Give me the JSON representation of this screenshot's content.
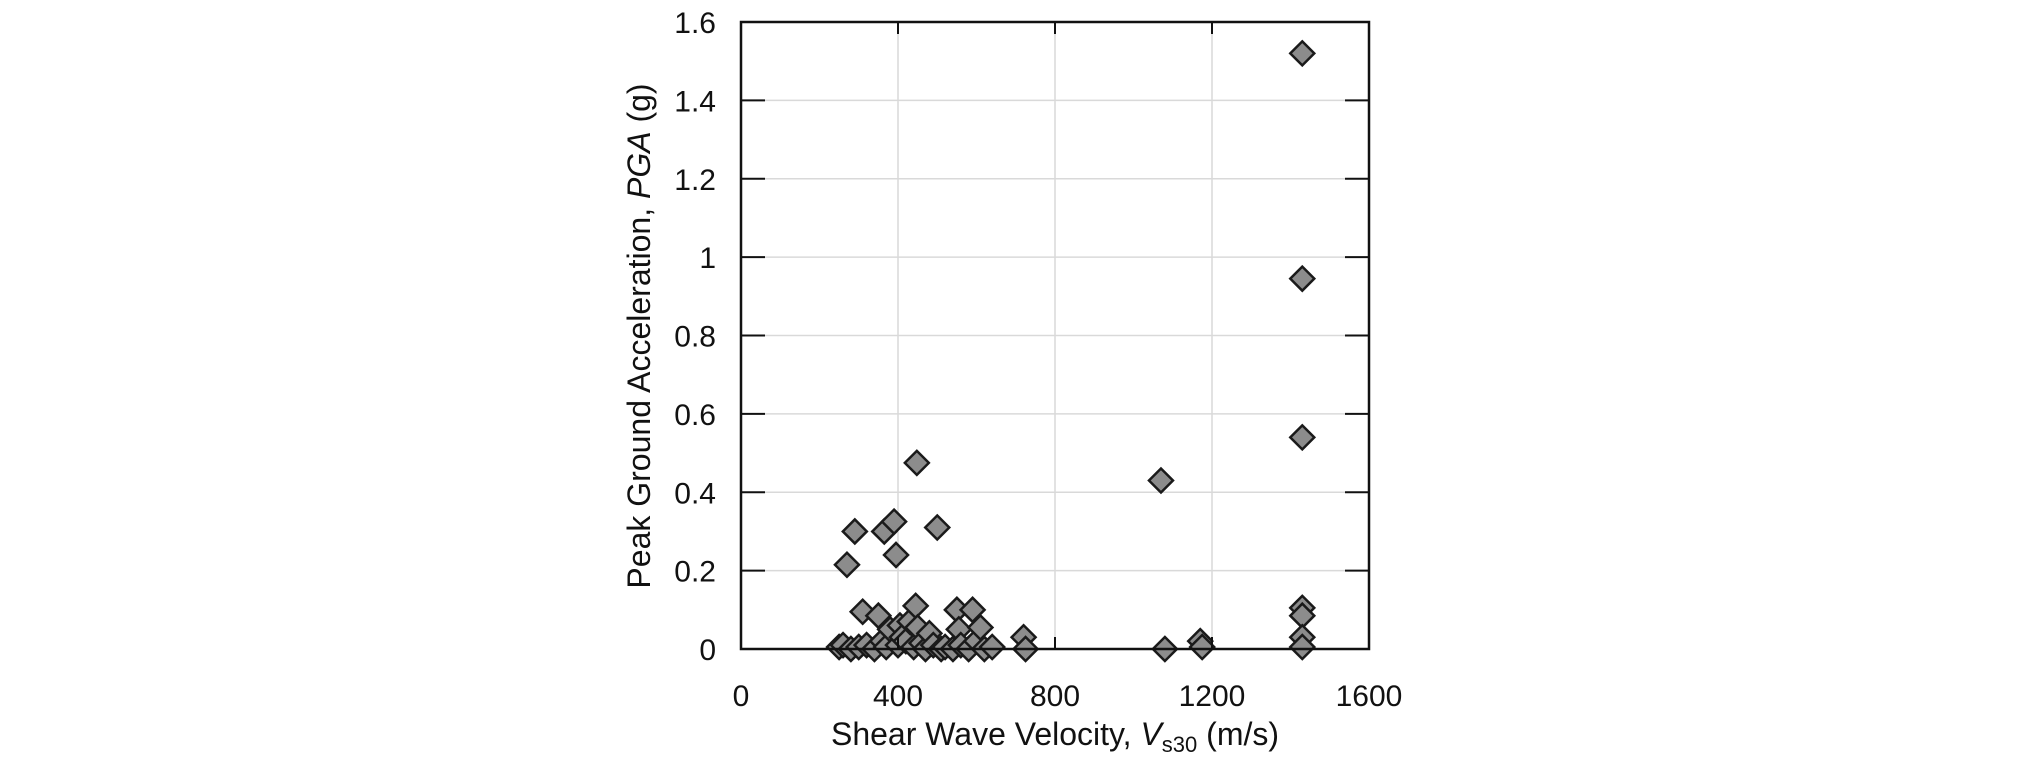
{
  "chart_data": {
    "type": "scatter",
    "xlabel_parts": {
      "prefix": "Shear Wave Velocity, ",
      "symbol": "V",
      "subscript": "s30",
      "suffix": " (m/s)"
    },
    "ylabel_parts": {
      "prefix": "Peak Ground Acceleration, ",
      "symbol": "PGA",
      "suffix": " (g)"
    },
    "xlim": [
      0,
      1600
    ],
    "ylim": [
      0,
      1.6
    ],
    "xticks": [
      0,
      400,
      800,
      1200,
      1600
    ],
    "xtick_labels": [
      "0",
      "400",
      "800",
      "1200",
      "1600"
    ],
    "yticks": [
      0,
      0.2,
      0.4,
      0.6,
      0.8,
      1.0,
      1.2,
      1.4,
      1.6
    ],
    "ytick_labels": [
      "0",
      "0.2",
      "0.4",
      "0.6",
      "0.8",
      "1",
      "1.2",
      "1.4",
      "1.6"
    ],
    "grid": true,
    "marker": "diamond",
    "colors": {
      "marker_fill": "#8c8c8c",
      "marker_stroke": "#1a1a1a",
      "grid": "#d9d9d9",
      "axis": "#111111"
    },
    "points": [
      {
        "x": 250,
        "y": 0.005
      },
      {
        "x": 260,
        "y": 0.01
      },
      {
        "x": 270,
        "y": 0.215
      },
      {
        "x": 290,
        "y": 0.3
      },
      {
        "x": 280,
        "y": 0.0
      },
      {
        "x": 300,
        "y": 0.005
      },
      {
        "x": 310,
        "y": 0.095
      },
      {
        "x": 320,
        "y": 0.01
      },
      {
        "x": 340,
        "y": 0.0
      },
      {
        "x": 350,
        "y": 0.085
      },
      {
        "x": 360,
        "y": 0.02
      },
      {
        "x": 365,
        "y": 0.3
      },
      {
        "x": 370,
        "y": 0.005
      },
      {
        "x": 380,
        "y": 0.05
      },
      {
        "x": 390,
        "y": 0.325
      },
      {
        "x": 395,
        "y": 0.24
      },
      {
        "x": 400,
        "y": 0.01
      },
      {
        "x": 405,
        "y": 0.06
      },
      {
        "x": 410,
        "y": 0.03
      },
      {
        "x": 420,
        "y": 0.02
      },
      {
        "x": 430,
        "y": 0.07
      },
      {
        "x": 440,
        "y": 0.005
      },
      {
        "x": 445,
        "y": 0.11
      },
      {
        "x": 448,
        "y": 0.475
      },
      {
        "x": 450,
        "y": 0.055
      },
      {
        "x": 460,
        "y": 0.015
      },
      {
        "x": 470,
        "y": 0.0
      },
      {
        "x": 480,
        "y": 0.04
      },
      {
        "x": 490,
        "y": 0.01
      },
      {
        "x": 500,
        "y": 0.31
      },
      {
        "x": 510,
        "y": 0.0
      },
      {
        "x": 520,
        "y": 0.005
      },
      {
        "x": 540,
        "y": 0.0
      },
      {
        "x": 550,
        "y": 0.1
      },
      {
        "x": 555,
        "y": 0.05
      },
      {
        "x": 560,
        "y": 0.01
      },
      {
        "x": 580,
        "y": 0.0
      },
      {
        "x": 590,
        "y": 0.1
      },
      {
        "x": 600,
        "y": 0.02
      },
      {
        "x": 610,
        "y": 0.055
      },
      {
        "x": 620,
        "y": 0.0
      },
      {
        "x": 640,
        "y": 0.005
      },
      {
        "x": 720,
        "y": 0.03
      },
      {
        "x": 725,
        "y": 0.0
      },
      {
        "x": 1070,
        "y": 0.43
      },
      {
        "x": 1080,
        "y": 0.0
      },
      {
        "x": 1170,
        "y": 0.02
      },
      {
        "x": 1175,
        "y": 0.005
      },
      {
        "x": 1430,
        "y": 1.52
      },
      {
        "x": 1430,
        "y": 0.945
      },
      {
        "x": 1430,
        "y": 0.54
      },
      {
        "x": 1430,
        "y": 0.105
      },
      {
        "x": 1430,
        "y": 0.085
      },
      {
        "x": 1430,
        "y": 0.03
      },
      {
        "x": 1430,
        "y": 0.005
      }
    ]
  }
}
